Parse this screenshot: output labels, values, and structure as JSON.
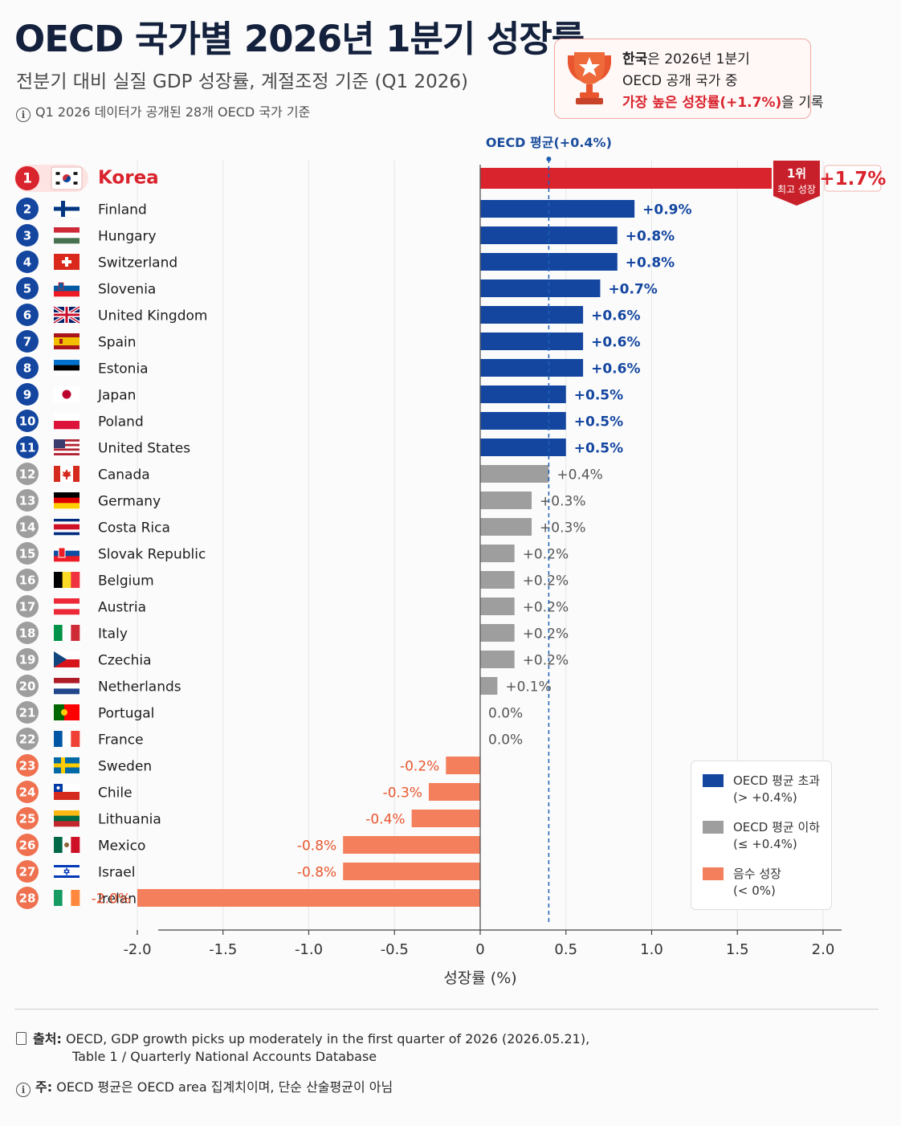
{
  "header": {
    "title": "OECD 국가별 2026년 1분기 성장률",
    "subtitle": "전분기 대비 실질 GDP 성장률, 계절조정 기준 (Q1 2026)",
    "note": "Q1 2026 데이터가 공개된 28개 OECD 국가 기준"
  },
  "callout": {
    "line1_bold": "한국",
    "line1_rest": "은 2026년 1분기",
    "line2": "OECD 공개 국가 중",
    "line3_highlight": "가장 높은 성장률(+1.7%)",
    "line3_rest": "을 기록"
  },
  "badge": {
    "rank": "1위",
    "label": "최고 성장"
  },
  "legend": {
    "above": {
      "label": "OECD 평균 초과",
      "sub": "(> +0.4%)"
    },
    "below": {
      "label": "OECD 평균 이하",
      "sub": "(≤ +0.4%)"
    },
    "negative": {
      "label": "음수 성장",
      "sub": "(< 0%)"
    }
  },
  "colors": {
    "above": "#1446a0",
    "below": "#9e9e9e",
    "negative": "#f47f5c",
    "top": "#d9232d",
    "avg_line": "#1f5fb5"
  },
  "chart_data": {
    "type": "bar",
    "orientation": "horizontal",
    "xlabel": "성장률 (%)",
    "xlim": [
      -2.0,
      2.0
    ],
    "x_ticks": [
      "-2.0",
      "-1.5",
      "-1.0",
      "-0.5",
      "0",
      "0.5",
      "1.0",
      "1.5",
      "2.0"
    ],
    "average": {
      "value": 0.4,
      "label": "OECD 평균(+0.4%)"
    },
    "grid": "vertical",
    "legend_position": "bottom-right",
    "rows": [
      {
        "rank": "1",
        "country": "Korea",
        "value": 1.7,
        "label": "+1.7%",
        "group": "top",
        "flag": "korea-flag"
      },
      {
        "rank": "2",
        "country": "Finland",
        "value": 0.9,
        "label": "+0.9%",
        "group": "above",
        "flag": "finland-flag"
      },
      {
        "rank": "3",
        "country": "Hungary",
        "value": 0.8,
        "label": "+0.8%",
        "group": "above",
        "flag": "hungary-flag"
      },
      {
        "rank": "4",
        "country": "Switzerland",
        "value": 0.8,
        "label": "+0.8%",
        "group": "above",
        "flag": "switzerland-flag"
      },
      {
        "rank": "5",
        "country": "Slovenia",
        "value": 0.7,
        "label": "+0.7%",
        "group": "above",
        "flag": "slovenia-flag"
      },
      {
        "rank": "6",
        "country": "United Kingdom",
        "value": 0.6,
        "label": "+0.6%",
        "group": "above",
        "flag": "uk-flag"
      },
      {
        "rank": "7",
        "country": "Spain",
        "value": 0.6,
        "label": "+0.6%",
        "group": "above",
        "flag": "spain-flag"
      },
      {
        "rank": "8",
        "country": "Estonia",
        "value": 0.6,
        "label": "+0.6%",
        "group": "above",
        "flag": "estonia-flag"
      },
      {
        "rank": "9",
        "country": "Japan",
        "value": 0.5,
        "label": "+0.5%",
        "group": "above",
        "flag": "japan-flag"
      },
      {
        "rank": "10",
        "country": "Poland",
        "value": 0.5,
        "label": "+0.5%",
        "group": "above",
        "flag": "poland-flag"
      },
      {
        "rank": "11",
        "country": "United States",
        "value": 0.5,
        "label": "+0.5%",
        "group": "above",
        "flag": "usa-flag"
      },
      {
        "rank": "12",
        "country": "Canada",
        "value": 0.4,
        "label": "+0.4%",
        "group": "below",
        "flag": "canada-flag"
      },
      {
        "rank": "13",
        "country": "Germany",
        "value": 0.3,
        "label": "+0.3%",
        "group": "below",
        "flag": "germany-flag"
      },
      {
        "rank": "14",
        "country": "Costa Rica",
        "value": 0.3,
        "label": "+0.3%",
        "group": "below",
        "flag": "costa-rica-flag"
      },
      {
        "rank": "15",
        "country": "Slovak Republic",
        "value": 0.2,
        "label": "+0.2%",
        "group": "below",
        "flag": "slovakia-flag"
      },
      {
        "rank": "16",
        "country": "Belgium",
        "value": 0.2,
        "label": "+0.2%",
        "group": "below",
        "flag": "belgium-flag"
      },
      {
        "rank": "17",
        "country": "Austria",
        "value": 0.2,
        "label": "+0.2%",
        "group": "below",
        "flag": "austria-flag"
      },
      {
        "rank": "18",
        "country": "Italy",
        "value": 0.2,
        "label": "+0.2%",
        "group": "below",
        "flag": "italy-flag"
      },
      {
        "rank": "19",
        "country": "Czechia",
        "value": 0.2,
        "label": "+0.2%",
        "group": "below",
        "flag": "czechia-flag"
      },
      {
        "rank": "20",
        "country": "Netherlands",
        "value": 0.1,
        "label": "+0.1%",
        "group": "below",
        "flag": "netherlands-flag"
      },
      {
        "rank": "21",
        "country": "Portugal",
        "value": 0.0,
        "label": "0.0%",
        "group": "below",
        "flag": "portugal-flag"
      },
      {
        "rank": "22",
        "country": "France",
        "value": 0.0,
        "label": "0.0%",
        "group": "below",
        "flag": "france-flag"
      },
      {
        "rank": "23",
        "country": "Sweden",
        "value": -0.2,
        "label": "-0.2%",
        "group": "negative",
        "flag": "sweden-flag"
      },
      {
        "rank": "24",
        "country": "Chile",
        "value": -0.3,
        "label": "-0.3%",
        "group": "negative",
        "flag": "chile-flag"
      },
      {
        "rank": "25",
        "country": "Lithuania",
        "value": -0.4,
        "label": "-0.4%",
        "group": "negative",
        "flag": "lithuania-flag"
      },
      {
        "rank": "26",
        "country": "Mexico",
        "value": -0.8,
        "label": "-0.8%",
        "group": "negative",
        "flag": "mexico-flag"
      },
      {
        "rank": "27",
        "country": "Israel",
        "value": -0.8,
        "label": "-0.8%",
        "group": "negative",
        "flag": "israel-flag"
      },
      {
        "rank": "28",
        "country": "Ireland",
        "value": -2.0,
        "label": "-2.0%",
        "group": "negative",
        "flag": "ireland-flag"
      }
    ]
  },
  "footer": {
    "source_label": "출처:",
    "source_line1": "OECD, GDP growth picks up moderately in the first quarter of 2026 (2026.05.21),",
    "source_line2": "Table 1 / Quarterly National Accounts Database",
    "note_label": "주:",
    "note_text": "OECD 평균은 OECD area 집계치이며, 단순 산술평균이 아님"
  }
}
